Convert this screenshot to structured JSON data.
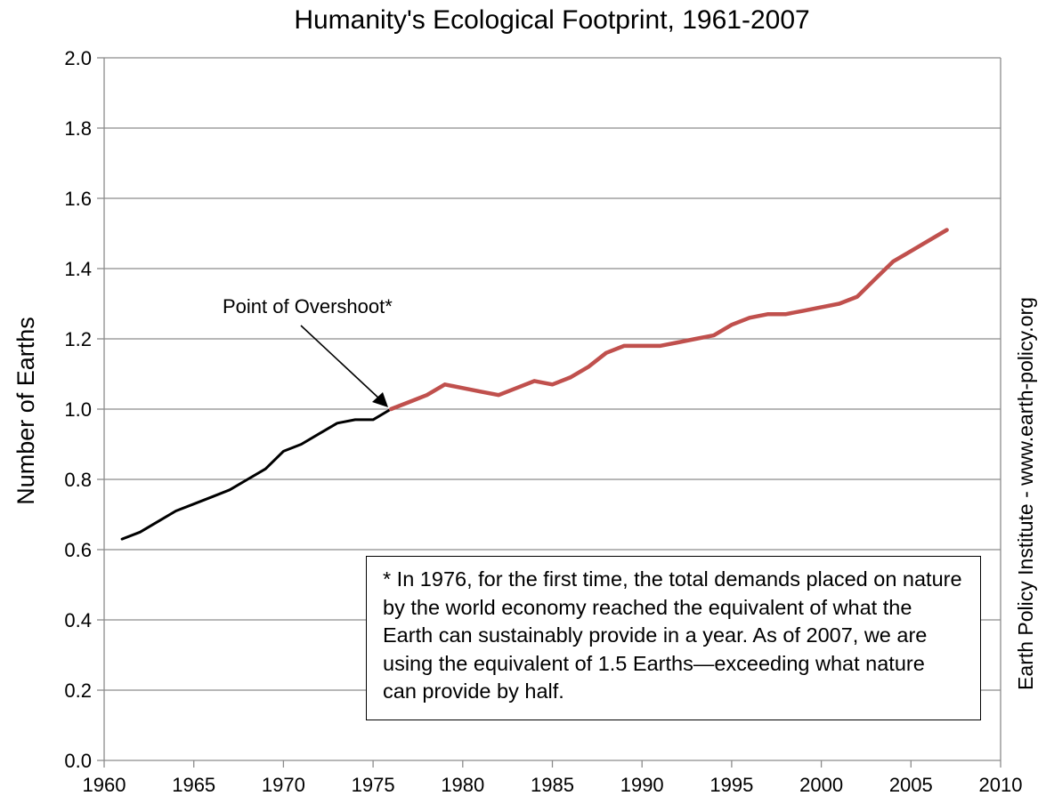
{
  "chart_data": {
    "type": "line",
    "title": "Humanity's Ecological Footprint, 1961-2007",
    "ylabel": "Number of Earths",
    "xlabel": "",
    "xlim": [
      1960,
      2010
    ],
    "ylim": [
      0,
      2.0
    ],
    "x_ticks": [
      1960,
      1965,
      1970,
      1975,
      1980,
      1985,
      1990,
      1995,
      2000,
      2005,
      2010
    ],
    "y_ticks": [
      "0.0",
      "0.2",
      "0.4",
      "0.6",
      "0.8",
      "1.0",
      "1.2",
      "1.4",
      "1.6",
      "1.8",
      "2.0"
    ],
    "grid": "horizontal",
    "series": [
      {
        "color": "#000000",
        "x": [
          1961,
          1962,
          1963,
          1964,
          1965,
          1966,
          1967,
          1968,
          1969,
          1970,
          1971,
          1972,
          1973,
          1974,
          1975,
          1976
        ],
        "values": [
          0.63,
          0.65,
          0.68,
          0.71,
          0.73,
          0.75,
          0.77,
          0.8,
          0.83,
          0.88,
          0.9,
          0.93,
          0.96,
          0.97,
          0.97,
          1.0
        ]
      },
      {
        "color": "#c0504d",
        "x": [
          1976,
          1977,
          1978,
          1979,
          1980,
          1981,
          1982,
          1983,
          1984,
          1985,
          1986,
          1987,
          1988,
          1989,
          1990,
          1991,
          1992,
          1993,
          1994,
          1995,
          1996,
          1997,
          1998,
          1999,
          2000,
          2001,
          2002,
          2003,
          2004,
          2005,
          2006,
          2007
        ],
        "values": [
          1.0,
          1.02,
          1.04,
          1.07,
          1.06,
          1.05,
          1.04,
          1.06,
          1.08,
          1.07,
          1.09,
          1.12,
          1.16,
          1.18,
          1.18,
          1.18,
          1.19,
          1.2,
          1.21,
          1.24,
          1.26,
          1.27,
          1.27,
          1.28,
          1.29,
          1.3,
          1.32,
          1.37,
          1.42,
          1.45,
          1.48,
          1.51
        ]
      }
    ],
    "annotation": {
      "label": "Point of Overshoot*",
      "x": 1976,
      "y": 1.0
    },
    "note": "* In 1976, for the first time, the total demands placed on nature by the world economy reached the equivalent of what the Earth can sustainably provide in a year. As of 2007, we are using the equivalent of 1.5 Earths—exceeding what nature can provide by half.",
    "source": "Earth Policy Institute - www.earth-policy.org"
  }
}
